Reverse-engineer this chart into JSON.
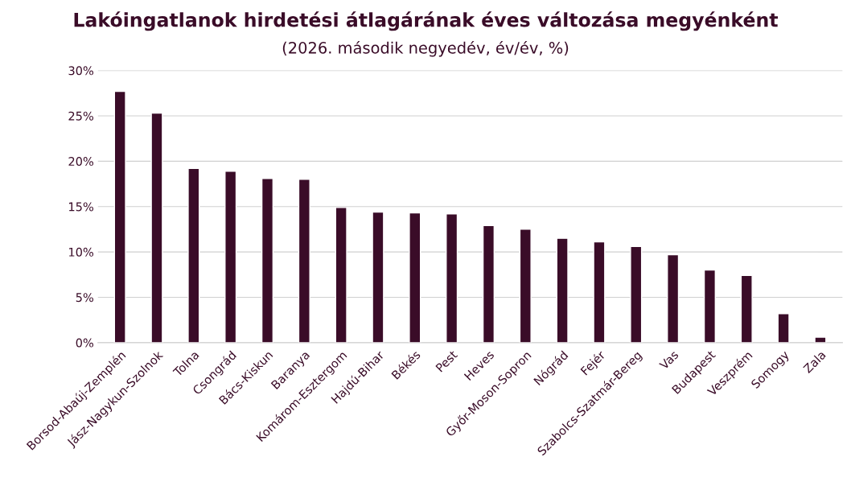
{
  "chart_data": {
    "type": "bar",
    "title": "Lakóingatlanok hirdetési átlagárának éves változása megyénként",
    "subtitle": "(2026. második negyedév, év/év, %)",
    "categories": [
      "Borsod-Abaúj-Zemplén",
      "Jász-Nagykun-Szolnok",
      "Tolna",
      "Csongrád",
      "Bács-Kiskun",
      "Baranya",
      "Komárom-Esztergom",
      "Hajdú-Bihar",
      "Békés",
      "Pest",
      "Heves",
      "Győr-Moson-Sopron",
      "Nógrád",
      "Fejér",
      "Szabolcs-Szatmár-Bereg",
      "Vas",
      "Budapest",
      "Veszprém",
      "Somogy",
      "Zala"
    ],
    "values": [
      27.7,
      25.3,
      19.2,
      18.9,
      18.1,
      18.0,
      14.9,
      14.4,
      14.3,
      14.2,
      12.9,
      12.5,
      11.5,
      11.1,
      10.6,
      9.7,
      8.0,
      7.4,
      3.2,
      0.6
    ],
    "color": "#3a0c28",
    "ylim": [
      0,
      30
    ],
    "yticks": [
      {
        "value": 0,
        "label": "0%"
      },
      {
        "value": 5,
        "label": "5%"
      },
      {
        "value": 10,
        "label": "10%"
      },
      {
        "value": 15,
        "label": "15%"
      },
      {
        "value": 20,
        "label": "20%"
      },
      {
        "value": 25,
        "label": "25%"
      },
      {
        "value": 30,
        "label": "30%"
      }
    ],
    "grid": "y"
  }
}
